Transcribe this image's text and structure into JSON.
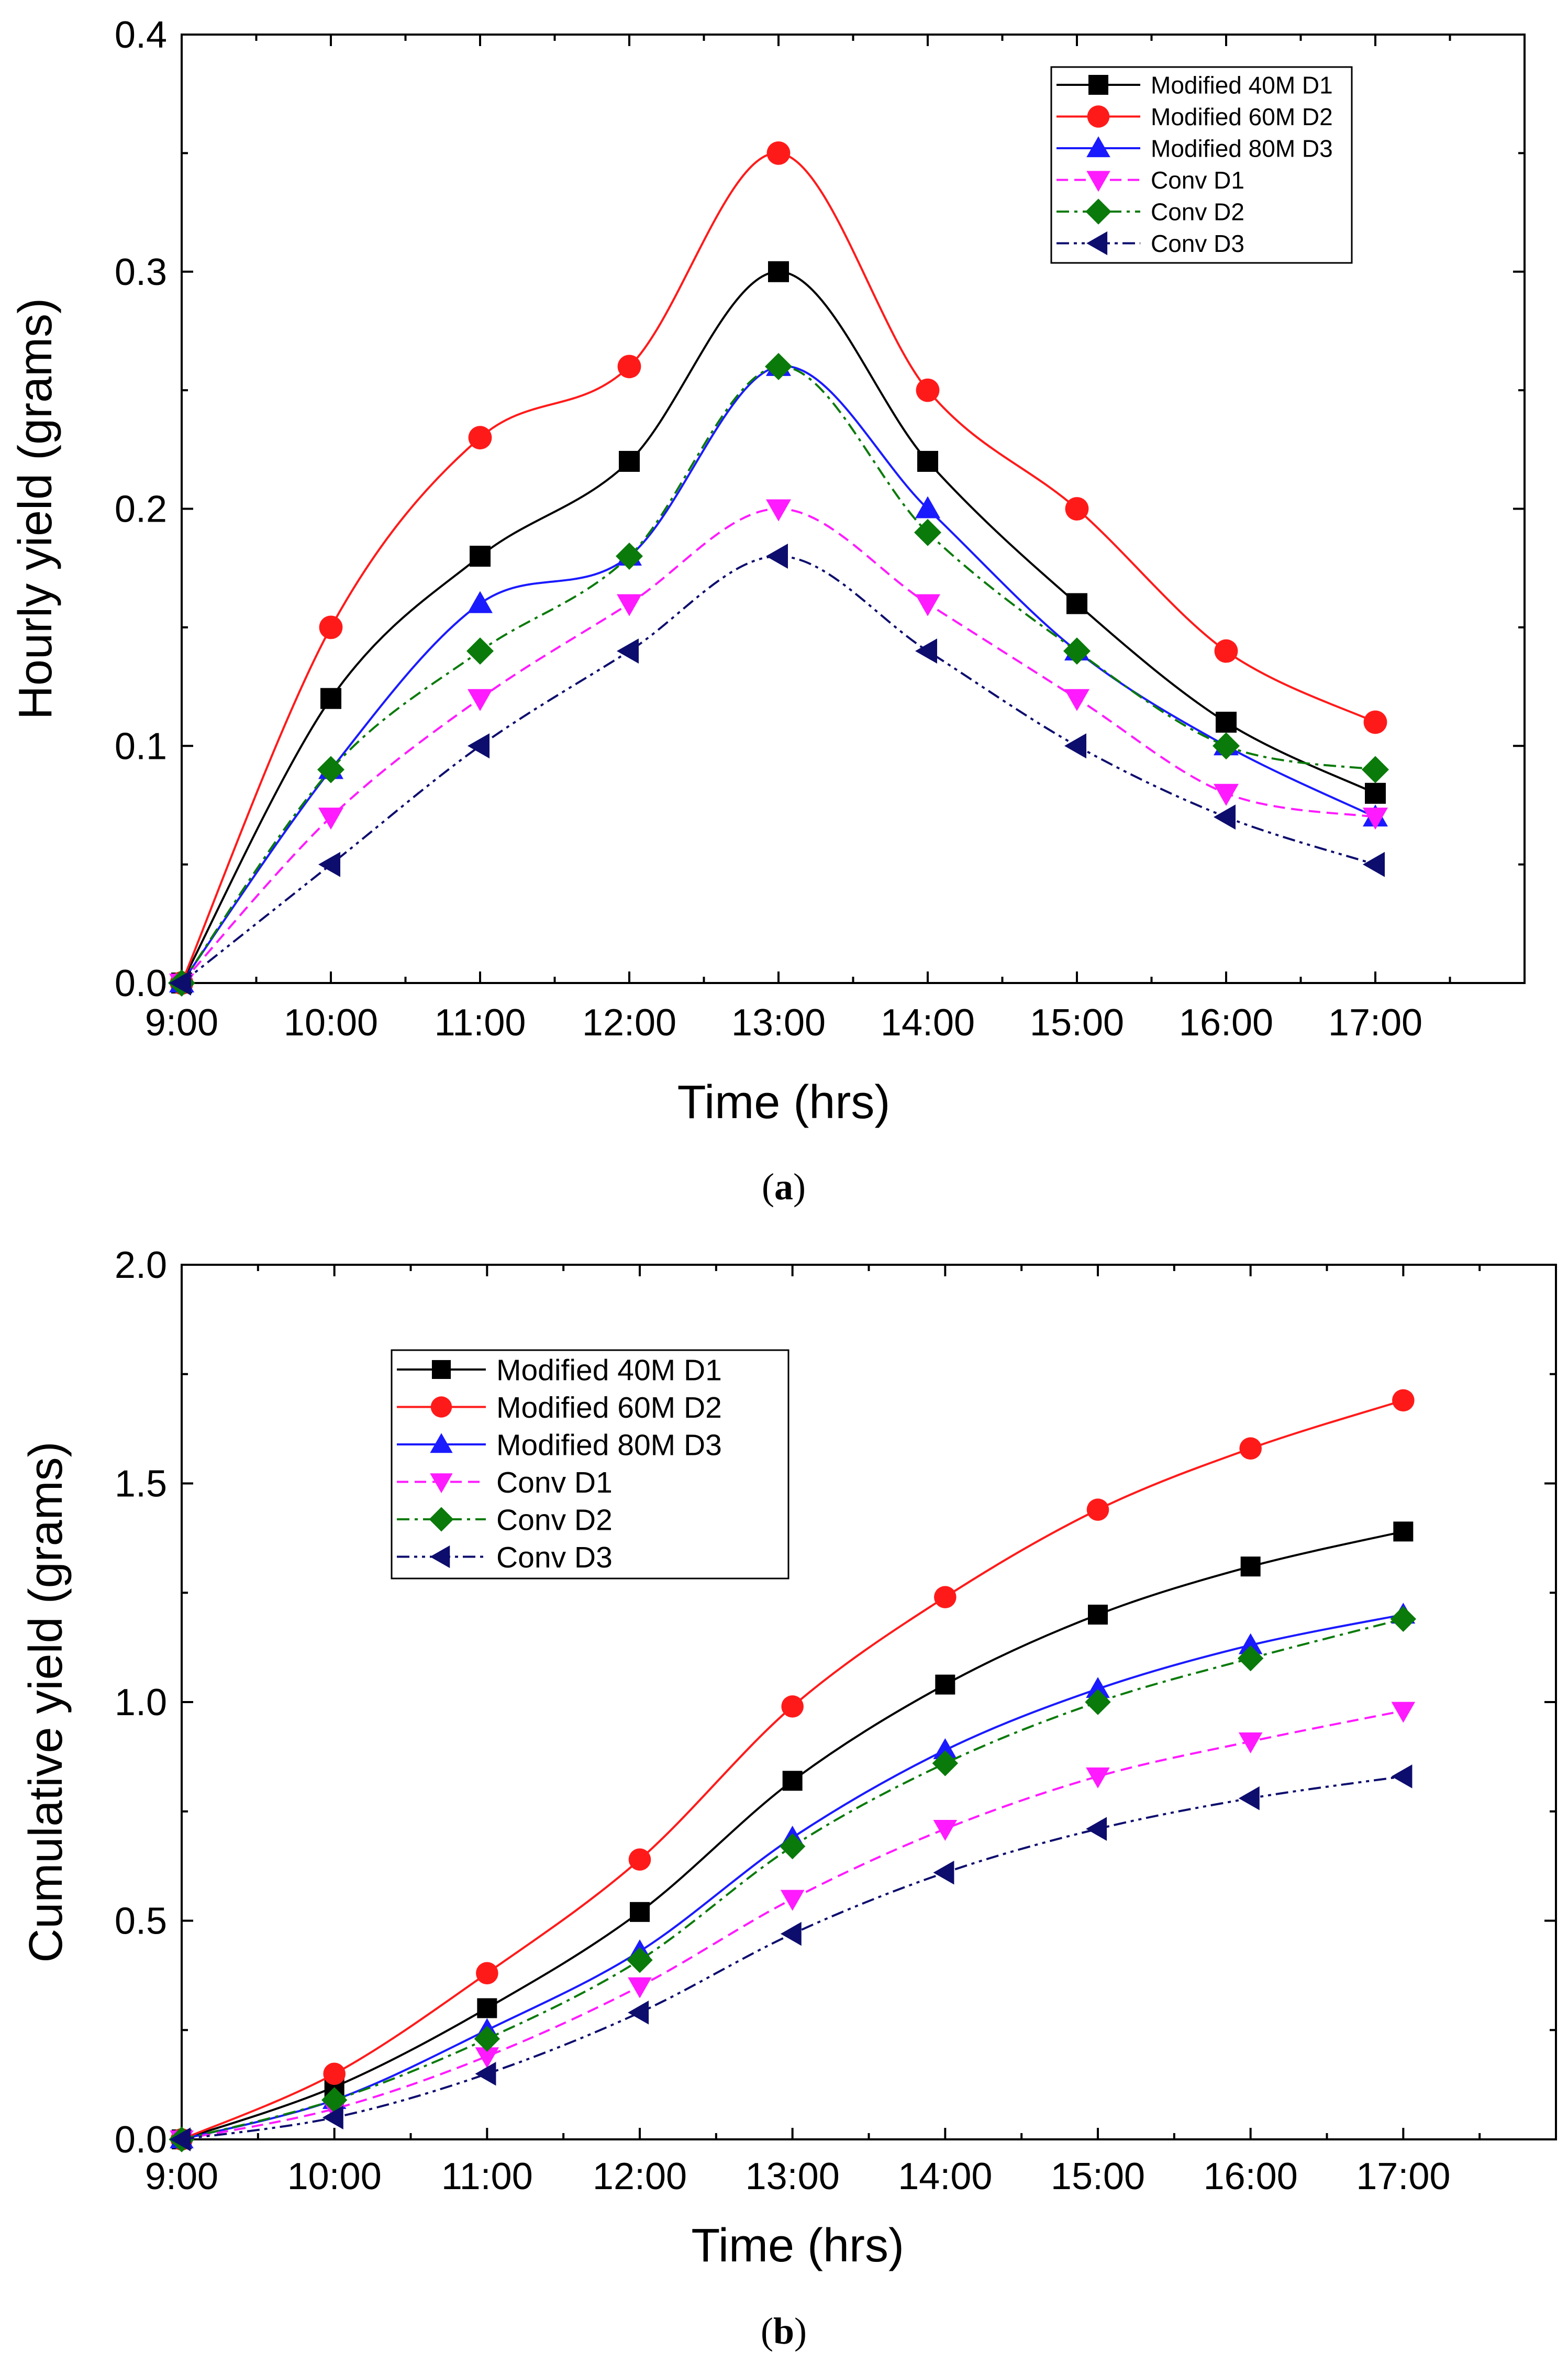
{
  "chart_data": [
    {
      "type": "line",
      "panel": "a",
      "caption": {
        "open": "(",
        "letter": "a",
        "close": ")"
      },
      "xlabel": "Time (hrs)",
      "ylabel": "Hourly yield (grams)",
      "categories": [
        "9:00",
        "10:00",
        "11:00",
        "12:00",
        "13:00",
        "14:00",
        "15:00",
        "16:00",
        "17:00"
      ],
      "ylim": [
        0,
        0.4
      ],
      "yticks": [
        "0.0",
        "0.1",
        "0.2",
        "0.3",
        "0.4"
      ],
      "legend_position": "top-right",
      "series": [
        {
          "name": "Modified 40M D1",
          "color": "#000000",
          "marker": "square",
          "dash": "solid",
          "values": [
            0,
            0.12,
            0.18,
            0.22,
            0.3,
            0.22,
            0.16,
            0.11,
            0.08
          ]
        },
        {
          "name": "Modified 60M D2",
          "color": "#ff1a1a",
          "marker": "circle",
          "dash": "solid",
          "values": [
            0,
            0.15,
            0.23,
            0.26,
            0.35,
            0.25,
            0.2,
            0.14,
            0.11
          ]
        },
        {
          "name": "Modified 80M D3",
          "color": "#1a1aff",
          "marker": "triangle-up",
          "dash": "solid",
          "values": [
            0,
            0.09,
            0.16,
            0.18,
            0.26,
            0.2,
            0.14,
            0.1,
            0.07
          ]
        },
        {
          "name": "Conv D1",
          "color": "#ff1aff",
          "marker": "triangle-down",
          "dash": "dash",
          "values": [
            0,
            0.07,
            0.12,
            0.16,
            0.2,
            0.16,
            0.12,
            0.08,
            0.07
          ]
        },
        {
          "name": "Conv D2",
          "color": "#0a7a0a",
          "marker": "diamond",
          "dash": "dashdot",
          "values": [
            0,
            0.09,
            0.14,
            0.18,
            0.26,
            0.19,
            0.14,
            0.1,
            0.09
          ]
        },
        {
          "name": "Conv D3",
          "color": "#0d0d6e",
          "marker": "triangle-left",
          "dash": "dashdotdot",
          "values": [
            0,
            0.05,
            0.1,
            0.14,
            0.18,
            0.14,
            0.1,
            0.07,
            0.05
          ]
        }
      ]
    },
    {
      "type": "line",
      "panel": "b",
      "caption": {
        "open": "(",
        "letter": "b",
        "close": ")"
      },
      "xlabel": "Time (hrs)",
      "ylabel": "Cumulative yield (grams)",
      "categories": [
        "9:00",
        "10:00",
        "11:00",
        "12:00",
        "13:00",
        "14:00",
        "15:00",
        "16:00",
        "17:00"
      ],
      "ylim": [
        0,
        2.0
      ],
      "yticks": [
        "0.0",
        "0.5",
        "1.0",
        "1.5",
        "2.0"
      ],
      "legend_position": "top-left",
      "series": [
        {
          "name": "Modified 40M D1",
          "color": "#000000",
          "marker": "square",
          "dash": "solid",
          "values": [
            0,
            0.12,
            0.3,
            0.52,
            0.82,
            1.04,
            1.2,
            1.31,
            1.39
          ]
        },
        {
          "name": "Modified 60M D2",
          "color": "#ff1a1a",
          "marker": "circle",
          "dash": "solid",
          "values": [
            0,
            0.15,
            0.38,
            0.64,
            0.99,
            1.24,
            1.44,
            1.58,
            1.69
          ]
        },
        {
          "name": "Modified 80M D3",
          "color": "#1a1aff",
          "marker": "triangle-up",
          "dash": "solid",
          "values": [
            0,
            0.09,
            0.25,
            0.43,
            0.69,
            0.89,
            1.03,
            1.13,
            1.2
          ]
        },
        {
          "name": "Conv D1",
          "color": "#ff1aff",
          "marker": "triangle-down",
          "dash": "dash",
          "values": [
            0,
            0.07,
            0.19,
            0.35,
            0.55,
            0.71,
            0.83,
            0.91,
            0.98
          ]
        },
        {
          "name": "Conv D2",
          "color": "#0a7a0a",
          "marker": "diamond",
          "dash": "dashdot",
          "values": [
            0,
            0.09,
            0.23,
            0.41,
            0.67,
            0.86,
            1.0,
            1.1,
            1.19
          ]
        },
        {
          "name": "Conv D3",
          "color": "#0d0d6e",
          "marker": "triangle-left",
          "dash": "dashdotdot",
          "values": [
            0,
            0.05,
            0.15,
            0.29,
            0.47,
            0.61,
            0.71,
            0.78,
            0.83
          ]
        }
      ]
    }
  ]
}
